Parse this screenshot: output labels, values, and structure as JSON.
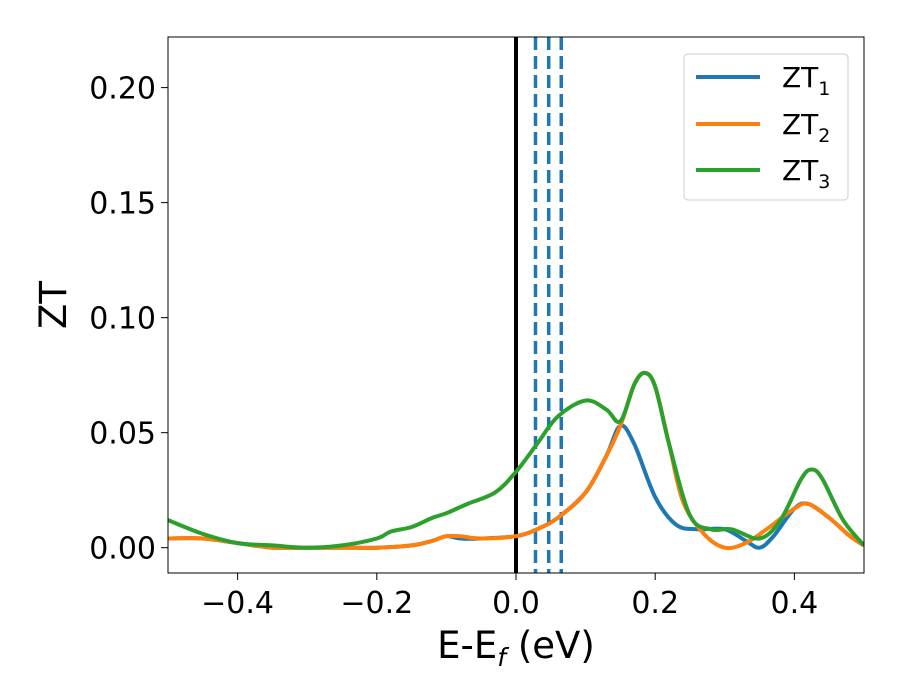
{
  "chart_data": {
    "type": "line",
    "xlabel": "E-E",
    "xlabel_sub": "f",
    "xlabel_unit": " (eV)",
    "ylabel": "ZT",
    "xlim": [
      -0.5,
      0.5
    ],
    "ylim": [
      -0.011,
      0.222
    ],
    "xticks": [
      -0.4,
      -0.2,
      0.0,
      0.2,
      0.4
    ],
    "xtick_labels": [
      "−0.4",
      "−0.2",
      "0.0",
      "0.2",
      "0.4"
    ],
    "yticks": [
      0.0,
      0.05,
      0.1,
      0.15,
      0.2
    ],
    "ytick_labels": [
      "0.00",
      "0.05",
      "0.10",
      "0.15",
      "0.20"
    ],
    "grid": false,
    "legend_position": "top-right",
    "vertical_lines": [
      {
        "x": 0.0,
        "color": "#000000",
        "style": "solid"
      },
      {
        "x": 0.028,
        "color": "#1f77b4",
        "style": "dashed"
      },
      {
        "x": 0.047,
        "color": "#1f77b4",
        "style": "dashed"
      },
      {
        "x": 0.065,
        "color": "#1f77b4",
        "style": "dashed"
      }
    ],
    "series": [
      {
        "name": "ZT",
        "name_sub": "1",
        "color": "#1f77b4",
        "x": [
          -0.5,
          -0.45,
          -0.4,
          -0.35,
          -0.3,
          -0.25,
          -0.2,
          -0.15,
          -0.12,
          -0.1,
          -0.08,
          -0.05,
          0.0,
          0.03,
          0.06,
          0.1,
          0.13,
          0.15,
          0.17,
          0.2,
          0.23,
          0.26,
          0.3,
          0.33,
          0.35,
          0.37,
          0.4,
          0.42,
          0.45,
          0.48,
          0.5
        ],
        "y": [
          0.004,
          0.004,
          0.002,
          0.0,
          0.0,
          0.0,
          0.0,
          0.001,
          0.003,
          0.005,
          0.004,
          0.004,
          0.005,
          0.008,
          0.013,
          0.024,
          0.04,
          0.053,
          0.045,
          0.022,
          0.01,
          0.008,
          0.008,
          0.003,
          0.0,
          0.005,
          0.017,
          0.019,
          0.013,
          0.005,
          0.001
        ]
      },
      {
        "name": "ZT",
        "name_sub": "2",
        "color": "#ff7f0e",
        "x": [
          -0.5,
          -0.45,
          -0.4,
          -0.35,
          -0.3,
          -0.25,
          -0.2,
          -0.15,
          -0.12,
          -0.1,
          -0.08,
          -0.05,
          0.0,
          0.03,
          0.06,
          0.1,
          0.13,
          0.15,
          0.17,
          0.185,
          0.2,
          0.22,
          0.24,
          0.27,
          0.3,
          0.33,
          0.36,
          0.4,
          0.42,
          0.45,
          0.48,
          0.5
        ],
        "y": [
          0.004,
          0.004,
          0.002,
          0.0,
          0.0,
          0.0,
          0.0,
          0.001,
          0.003,
          0.005,
          0.005,
          0.004,
          0.005,
          0.008,
          0.013,
          0.024,
          0.04,
          0.053,
          0.071,
          0.076,
          0.07,
          0.045,
          0.02,
          0.006,
          0.0,
          0.002,
          0.008,
          0.017,
          0.019,
          0.013,
          0.005,
          0.001
        ]
      },
      {
        "name": "ZT",
        "name_sub": "3",
        "color": "#2ca02c",
        "x": [
          -0.5,
          -0.45,
          -0.4,
          -0.35,
          -0.3,
          -0.25,
          -0.2,
          -0.18,
          -0.15,
          -0.12,
          -0.1,
          -0.07,
          -0.03,
          0.0,
          0.03,
          0.06,
          0.1,
          0.13,
          0.15,
          0.17,
          0.185,
          0.2,
          0.22,
          0.25,
          0.28,
          0.31,
          0.35,
          0.38,
          0.41,
          0.425,
          0.44,
          0.47,
          0.5
        ],
        "y": [
          0.012,
          0.006,
          0.002,
          0.001,
          0.0,
          0.001,
          0.004,
          0.007,
          0.009,
          0.013,
          0.015,
          0.019,
          0.024,
          0.033,
          0.045,
          0.057,
          0.064,
          0.06,
          0.055,
          0.071,
          0.076,
          0.07,
          0.045,
          0.014,
          0.008,
          0.008,
          0.004,
          0.012,
          0.03,
          0.034,
          0.03,
          0.012,
          0.001
        ]
      }
    ]
  }
}
